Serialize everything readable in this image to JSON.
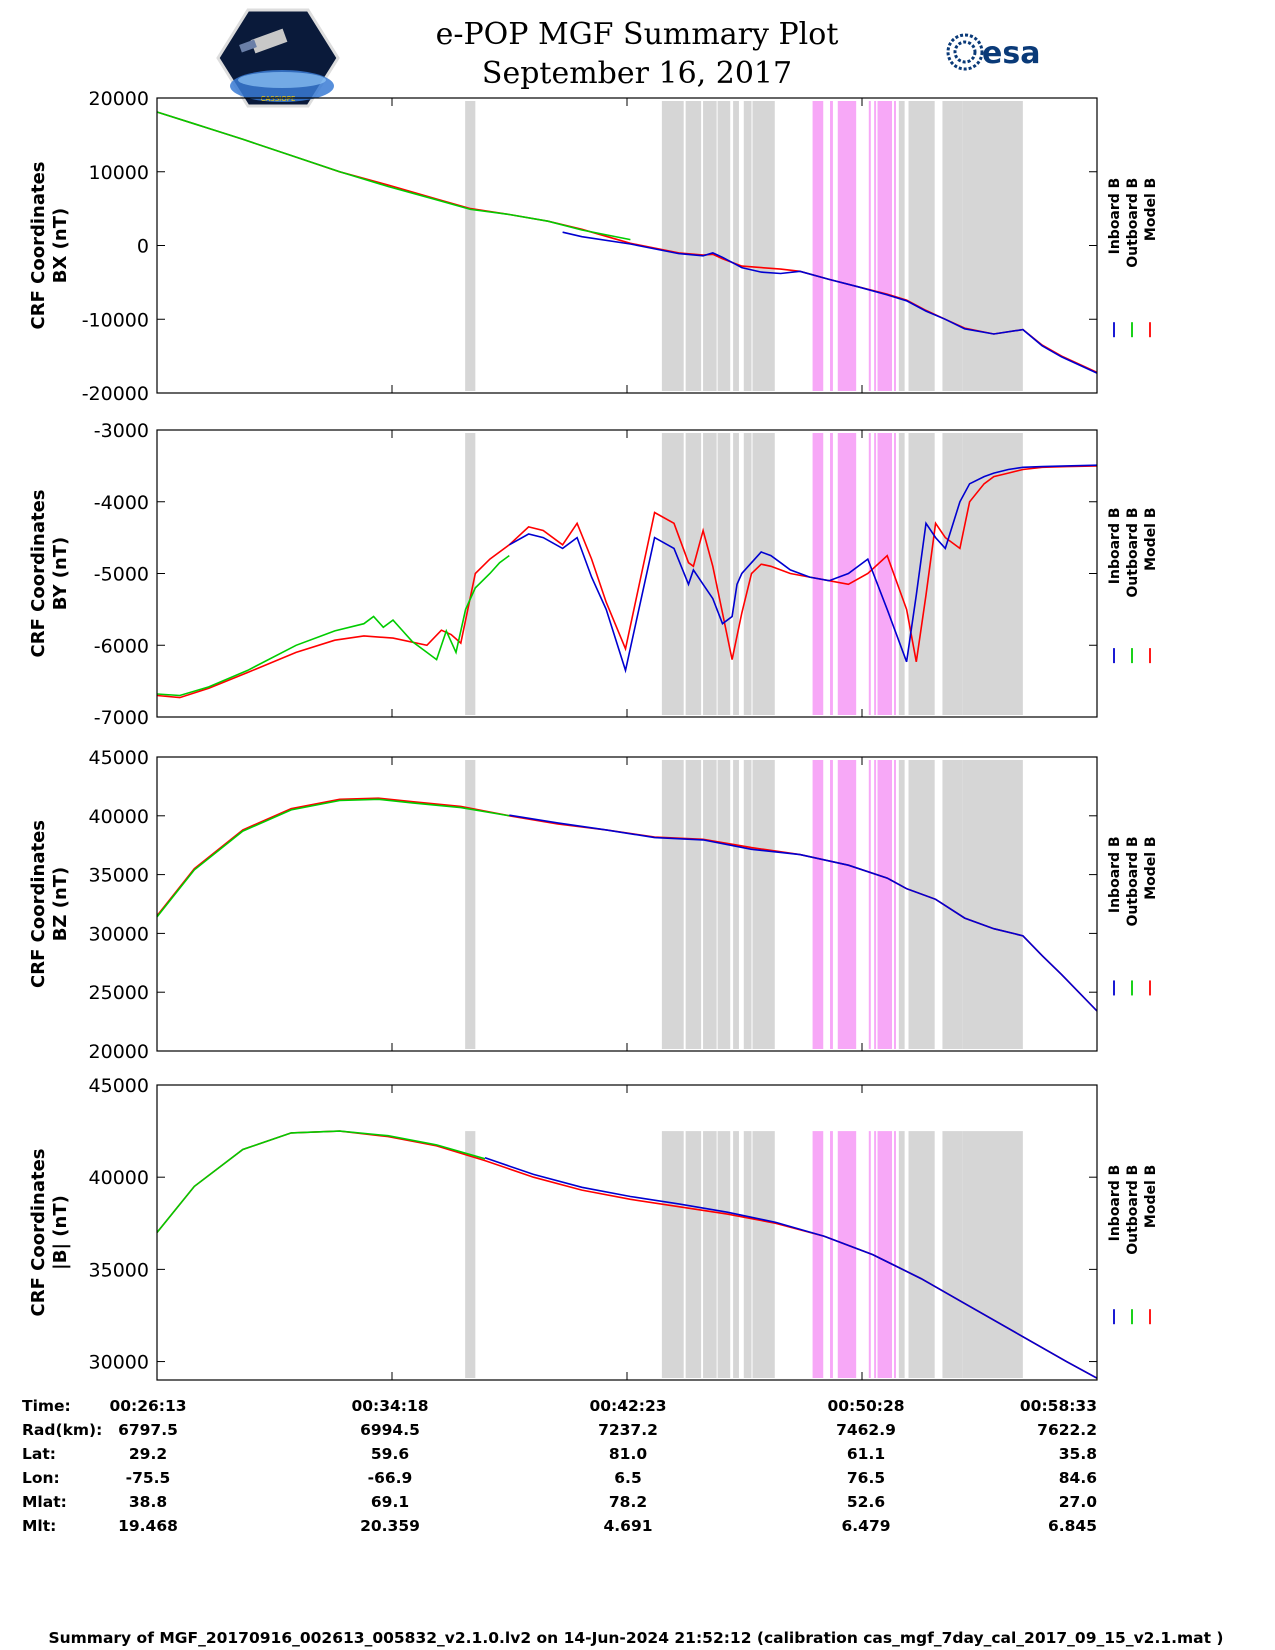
{
  "header": {
    "title": "e-POP MGF Summary Plot",
    "date": "September 16, 2017",
    "logo_left": "CASSIOPE",
    "logo_right": "esa"
  },
  "colors": {
    "inboard": "#0000d0",
    "outboard": "#00cc00",
    "model": "#ff0000",
    "gray_band": "#d6d6d6",
    "pink_band": "#f7a8f7"
  },
  "legend": [
    "Inboard B",
    "Outboard B",
    "Model B"
  ],
  "chart_data": {
    "type": "line",
    "x_time_ticks": [
      "00:26:13",
      "00:34:18",
      "00:42:23",
      "00:50:28",
      "00:58:33"
    ],
    "x_range_seconds": [
      1573,
      3513
    ],
    "shaded_intervals": {
      "gray": [
        [
          2209,
          2230
        ],
        [
          2615,
          2660
        ],
        [
          2664,
          2696
        ],
        [
          2700,
          2728
        ],
        [
          2730,
          2756
        ],
        [
          2762,
          2774
        ],
        [
          2784,
          2800
        ],
        [
          2802,
          2848
        ]
      ],
      "pink": [
        [
          2926,
          2948
        ],
        [
          2962,
          2968
        ],
        [
          2978,
          3016
        ],
        [
          3042,
          3046
        ],
        [
          3053,
          3057
        ],
        [
          3060,
          3090
        ],
        [
          3094,
          3098
        ]
      ],
      "gray_late": [
        [
          3104,
          3116
        ],
        [
          3124,
          3178
        ],
        [
          3194,
          3236
        ],
        [
          3236,
          3360
        ]
      ]
    },
    "panels": [
      {
        "ylabel_line1": "CRF Coordinates",
        "ylabel_line2": "BX (nT)",
        "ylim": [
          -20000,
          20000
        ],
        "yticks": [
          "20000",
          "10000",
          "0",
          "-10000",
          "-20000"
        ],
        "ytick_values": [
          20000,
          10000,
          0,
          -10000,
          -20000
        ],
        "series": [
          {
            "name": "Model B",
            "x": [
              1573,
              1650,
              1750,
              1850,
              1950,
              2050,
              2150,
              2220,
              2300,
              2380,
              2450,
              2550,
              2650,
              2700,
              2720,
              2740,
              2780,
              2820,
              2860,
              2900,
              2960,
              3020,
              3080,
              3120,
              3160,
              3200,
              3240,
              3300,
              3360,
              3400,
              3440,
              3513
            ],
            "y": [
              18100,
              16500,
              14400,
              12200,
              10000,
              8200,
              6300,
              5000,
              4200,
              3300,
              2200,
              300,
              -1000,
              -1300,
              -1200,
              -1800,
              -2800,
              -3000,
              -3200,
              -3500,
              -4600,
              -5600,
              -6600,
              -7400,
              -8800,
              -10000,
              -11200,
              -12000,
              -11400,
              -13500,
              -15000,
              -17200
            ]
          },
          {
            "name": "Outboard B",
            "x": [
              1573,
              1650,
              1750,
              1850,
              1950,
              2050,
              2150,
              2220,
              2300,
              2380,
              2450,
              2550
            ],
            "y": [
              18100,
              16500,
              14400,
              12200,
              10000,
              8000,
              6200,
              4900,
              4200,
              3300,
              2100,
              800
            ]
          },
          {
            "name": "Inboard B",
            "x": [
              2410,
              2450,
              2550,
              2650,
              2700,
              2720,
              2740,
              2780,
              2820,
              2860,
              2900,
              2960,
              3020,
              3080,
              3120,
              3160,
              3200,
              3240,
              3300,
              3360,
              3400,
              3440,
              3513
            ],
            "y": [
              1800,
              1200,
              200,
              -1100,
              -1400,
              -1000,
              -1600,
              -3000,
              -3600,
              -3800,
              -3500,
              -4600,
              -5600,
              -6700,
              -7500,
              -8900,
              -10000,
              -11300,
              -12000,
              -11400,
              -13600,
              -15100,
              -17300
            ]
          }
        ]
      },
      {
        "ylabel_line1": "CRF Coordinates",
        "ylabel_line2": "BY (nT)",
        "ylim": [
          -7000,
          -3000
        ],
        "yticks": [
          "-3000",
          "-4000",
          "-5000",
          "-6000",
          "-7000"
        ],
        "ytick_values": [
          -3000,
          -4000,
          -5000,
          -6000,
          -7000
        ],
        "series": [
          {
            "name": "Model B",
            "x": [
              1573,
              1620,
              1680,
              1760,
              1860,
              1940,
              2000,
              2060,
              2130,
              2160,
              2180,
              2200,
              2230,
              2260,
              2300,
              2340,
              2370,
              2410,
              2440,
              2470,
              2500,
              2540,
              2600,
              2640,
              2670,
              2680,
              2700,
              2720,
              2740,
              2760,
              2780,
              2800,
              2820,
              2840,
              2860,
              2880,
              2920,
              2960,
              3000,
              3040,
              3080,
              3120,
              3140,
              3160,
              3180,
              3200,
              3230,
              3250,
              3280,
              3300,
              3330,
              3360,
              3400,
              3450,
              3513
            ],
            "y": [
              -6700,
              -6730,
              -6600,
              -6380,
              -6100,
              -5930,
              -5870,
              -5900,
              -6000,
              -5790,
              -5850,
              -5970,
              -5000,
              -4800,
              -4600,
              -4350,
              -4400,
              -4600,
              -4300,
              -4800,
              -5400,
              -6050,
              -4150,
              -4300,
              -4850,
              -4900,
              -4400,
              -4900,
              -5550,
              -6200,
              -5550,
              -5000,
              -4870,
              -4900,
              -4950,
              -5000,
              -5050,
              -5100,
              -5150,
              -5000,
              -4750,
              -5500,
              -6230,
              -5300,
              -4300,
              -4500,
              -4650,
              -4000,
              -3750,
              -3650,
              -3600,
              -3550,
              -3520,
              -3510,
              -3500
            ]
          },
          {
            "name": "Outboard B",
            "x": [
              1573,
              1620,
              1680,
              1760,
              1860,
              1940,
              2000,
              2020,
              2040,
              2060,
              2080,
              2100,
              2130,
              2150,
              2170,
              2190,
              2210,
              2230,
              2260,
              2280,
              2300
            ],
            "y": [
              -6680,
              -6700,
              -6580,
              -6350,
              -6000,
              -5800,
              -5700,
              -5600,
              -5750,
              -5650,
              -5800,
              -5950,
              -6100,
              -6200,
              -5800,
              -6100,
              -5500,
              -5200,
              -5000,
              -4850,
              -4750
            ]
          },
          {
            "name": "Inboard B",
            "x": [
              2300,
              2340,
              2370,
              2410,
              2440,
              2470,
              2500,
              2540,
              2600,
              2640,
              2670,
              2680,
              2700,
              2720,
              2740,
              2760,
              2770,
              2780,
              2800,
              2820,
              2840,
              2860,
              2880,
              2920,
              2960,
              3000,
              3040,
              3080,
              3120,
              3140,
              3160,
              3180,
              3200,
              3230,
              3250,
              3280,
              3300,
              3330,
              3360,
              3400,
              3450,
              3513
            ],
            "y": [
              -4600,
              -4450,
              -4500,
              -4650,
              -4500,
              -5050,
              -5500,
              -6350,
              -4500,
              -4650,
              -5150,
              -4950,
              -5150,
              -5350,
              -5700,
              -5600,
              -5150,
              -5000,
              -4850,
              -4700,
              -4750,
              -4850,
              -4950,
              -5050,
              -5100,
              -5000,
              -4800,
              -5500,
              -6230,
              -5300,
              -4300,
              -4500,
              -4650,
              -4000,
              -3750,
              -3650,
              -3600,
              -3550,
              -3520,
              -3510,
              -3500,
              -3490
            ]
          }
        ]
      },
      {
        "ylabel_line1": "CRF Coordinates",
        "ylabel_line2": "BZ (nT)",
        "ylim": [
          20000,
          45000
        ],
        "yticks": [
          "45000",
          "40000",
          "35000",
          "30000",
          "25000",
          "20000"
        ],
        "ytick_values": [
          45000,
          40000,
          35000,
          30000,
          25000,
          20000
        ],
        "series": [
          {
            "name": "Model B",
            "x": [
              1573,
              1650,
              1750,
              1850,
              1950,
              2030,
              2100,
              2200,
              2300,
              2400,
              2500,
              2600,
              2700,
              2800,
              2900,
              3000,
              3080,
              3120,
              3180,
              3240,
              3300,
              3360,
              3400,
              3440,
              3513
            ],
            "y": [
              31500,
              35500,
              38800,
              40600,
              41400,
              41500,
              41200,
              40800,
              40000,
              39300,
              38800,
              38200,
              38000,
              37300,
              36700,
              35800,
              34700,
              33800,
              32900,
              31300,
              30400,
              29800,
              28100,
              26500,
              23400
            ]
          },
          {
            "name": "Outboard B",
            "x": [
              1573,
              1650,
              1750,
              1850,
              1950,
              2030,
              2100,
              2200,
              2300
            ],
            "y": [
              31400,
              35400,
              38700,
              40500,
              41300,
              41400,
              41100,
              40700,
              40000
            ]
          },
          {
            "name": "Inboard B",
            "x": [
              2300,
              2400,
              2500,
              2600,
              2700,
              2800,
              2900,
              3000,
              3080,
              3120,
              3180,
              3240,
              3300,
              3360,
              3400,
              3440,
              3513
            ],
            "y": [
              40050,
              39400,
              38800,
              38150,
              37950,
              37150,
              36700,
              35800,
              34700,
              33800,
              32900,
              31300,
              30400,
              29800,
              28100,
              26500,
              23400
            ]
          }
        ]
      },
      {
        "ylabel_line1": "CRF Coordinates",
        "ylabel_line2": "|B| (nT)",
        "ylim": [
          29000,
          45000
        ],
        "yticks": [
          "45000",
          "40000",
          "35000",
          "30000"
        ],
        "ytick_values": [
          45000,
          40000,
          35000,
          30000
        ],
        "series": [
          {
            "name": "Model B",
            "x": [
              1573,
              1650,
              1750,
              1850,
              1950,
              2050,
              2150,
              2250,
              2350,
              2450,
              2550,
              2650,
              2750,
              2850,
              2950,
              3050,
              3150,
              3250,
              3350,
              3450,
              3513
            ],
            "y": [
              37000,
              39500,
              41500,
              42400,
              42500,
              42200,
              41700,
              40900,
              40000,
              39300,
              38800,
              38400,
              38000,
              37500,
              36800,
              35800,
              34500,
              33000,
              31500,
              30000,
              29100
            ]
          },
          {
            "name": "Outboard B",
            "x": [
              1573,
              1650,
              1750,
              1850,
              1950,
              2050,
              2150,
              2250
            ],
            "y": [
              37000,
              39500,
              41500,
              42400,
              42500,
              42250,
              41750,
              41000
            ]
          },
          {
            "name": "Inboard B",
            "x": [
              2250,
              2350,
              2450,
              2550,
              2650,
              2750,
              2850,
              2950,
              3050,
              3150,
              3250,
              3350,
              3450,
              3513
            ],
            "y": [
              41050,
              40150,
              39450,
              38950,
              38550,
              38100,
              37550,
              36800,
              35800,
              34500,
              33000,
              31500,
              30000,
              29100
            ]
          }
        ]
      }
    ]
  },
  "info_table": {
    "labels": [
      "Time:",
      "Rad(km):",
      "Lat:",
      "Lon:",
      "Mlat:",
      "Mlt:"
    ],
    "columns": [
      [
        "00:26:13",
        "6797.5",
        "29.2",
        "-75.5",
        "38.8",
        "19.468"
      ],
      [
        "00:34:18",
        "6994.5",
        "59.6",
        "-66.9",
        "69.1",
        "20.359"
      ],
      [
        "00:42:23",
        "7237.2",
        "81.0",
        "6.5",
        "78.2",
        "4.691"
      ],
      [
        "00:50:28",
        "7462.9",
        "61.1",
        "76.5",
        "52.6",
        "6.479"
      ],
      [
        "00:58:33",
        "7622.2",
        "35.8",
        "84.6",
        "27.0",
        "6.845"
      ]
    ]
  },
  "footer": "Summary of MGF_20170916_002613_005832_v2.1.0.lv2 on 14-Jun-2024 21:52:12 (calibration cas_mgf_7day_cal_2017_09_15_v2.1.mat )"
}
